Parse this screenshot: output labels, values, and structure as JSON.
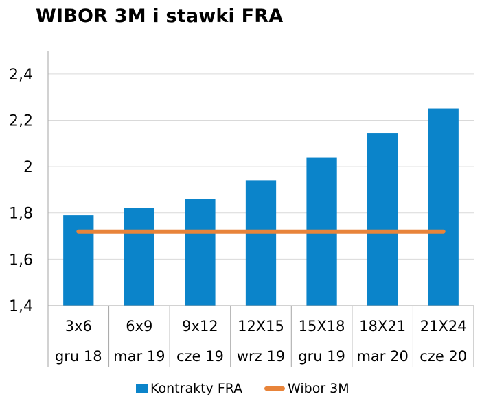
{
  "chart_data": {
    "type": "bar",
    "title": "WIBOR 3M i stawki FRA",
    "categories": [
      "3x6",
      "6x9",
      "9x12",
      "12X15",
      "15X18",
      "18X21",
      "21X24"
    ],
    "subcategories": [
      "gru 18",
      "mar 19",
      "cze 19",
      "wrz 19",
      "gru 19",
      "mar 20",
      "cze 20"
    ],
    "series": [
      {
        "name": "Kontrakty FRA",
        "type": "bar",
        "color": "#0B84CA",
        "values": [
          1.79,
          1.82,
          1.86,
          1.94,
          2.04,
          2.145,
          2.25
        ]
      },
      {
        "name": "Wibor 3M",
        "type": "line",
        "color": "#E8843A",
        "values": [
          1.72,
          1.72,
          1.72,
          1.72,
          1.72,
          1.72,
          1.72
        ]
      }
    ],
    "ylim": [
      1.4,
      2.5
    ],
    "yticks": [
      1.4,
      1.6,
      1.8,
      2,
      2.2,
      2.4
    ],
    "ytick_labels": [
      "1,4",
      "1,6",
      "1,8",
      "2",
      "2,2",
      "2,4"
    ],
    "xlabel": "",
    "ylabel": "",
    "grid": true,
    "legend_position": "bottom"
  }
}
